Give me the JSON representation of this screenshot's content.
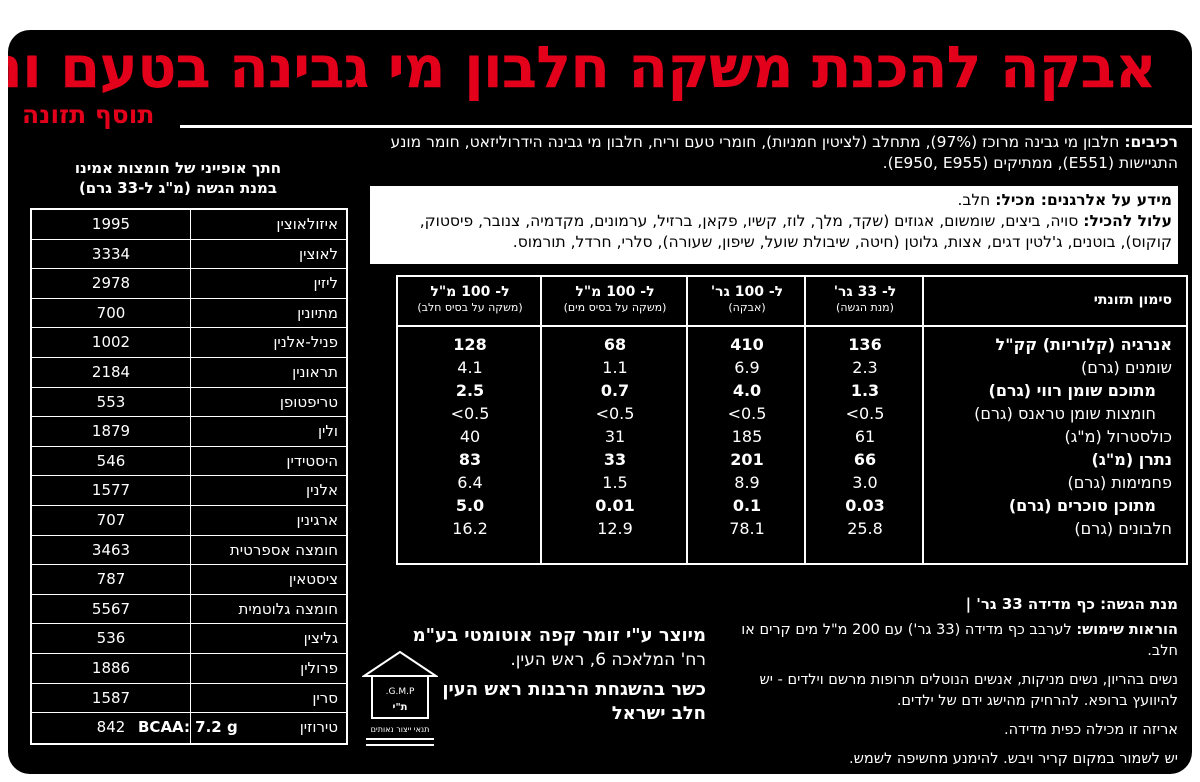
{
  "title": "אבקה להכנת משקה חלבון מי גבינה בטעם וניל",
  "subtitle": "תוסף תזונה",
  "ingredients": {
    "label": "רכיבים:",
    "text": "חלבון מי גבינה מרוכז (97%), מתחלב (לציטין חמניות), חומרי טעם וריח, חלבון מי גבינה הידרוליזאט, חומר מונע התגיישות (E551), ממתיקים (E950, E955)."
  },
  "allergens": {
    "contains_label": "מידע על אלרגנים: מכיל:",
    "contains_text": "חלב.",
    "may_contain_label": "עלול להכיל:",
    "may_contain_text": "סויה, ביצים, שומשום, אגוזים (שקד, מלך, לוז, קשיו, פקאן, ברזיל, ערמונים, מקדמיה, צנובר, פיסטוק, קוקוס), בוטנים, ג'לטין דגים, אצות, גלוטן (חיטה, שיבולת שועל, שיפון, שעורה), סלרי, חרדל, תורמוס."
  },
  "nutrition": {
    "headers": [
      {
        "title": "סימון תזונתי",
        "sub": ""
      },
      {
        "title": "ל- 33 גר'",
        "sub": "(מנת הגשה)"
      },
      {
        "title": "ל- 100 גר'",
        "sub": "(אבקה)"
      },
      {
        "title": "ל- 100 מ\"ל",
        "sub": "(משקה על בסיס מים)"
      },
      {
        "title": "ל- 100 מ\"ל",
        "sub": "(משקה על בסיס חלב)"
      }
    ],
    "rows": [
      {
        "name": "אנרגיה (קלוריות) קק\"ל",
        "values": [
          "136",
          "410",
          "68",
          "128"
        ],
        "bold": true,
        "indent": false
      },
      {
        "name": "שומנים (גרם)",
        "values": [
          "2.3",
          "6.9",
          "1.1",
          "4.1"
        ],
        "bold": false,
        "indent": false
      },
      {
        "name": "מתוכם שומן רווי (גרם)",
        "values": [
          "1.3",
          "4.0",
          "0.7",
          "2.5"
        ],
        "bold": true,
        "indent": true
      },
      {
        "name": "חומצות שומן טראנס (גרם)",
        "values": [
          "<0.5",
          "<0.5",
          "<0.5",
          "<0.5"
        ],
        "bold": false,
        "indent": true
      },
      {
        "name": "כולסטרול (מ\"ג)",
        "values": [
          "61",
          "185",
          "31",
          "40"
        ],
        "bold": false,
        "indent": false
      },
      {
        "name": "נתרן (מ\"ג)",
        "values": [
          "66",
          "201",
          "33",
          "83"
        ],
        "bold": true,
        "indent": false
      },
      {
        "name": "פחמימות (גרם)",
        "values": [
          "3.0",
          "8.9",
          "1.5",
          "6.4"
        ],
        "bold": false,
        "indent": false
      },
      {
        "name": "מתוכן סוכרים (גרם)",
        "values": [
          "0.03",
          "0.1",
          "0.01",
          "5.0"
        ],
        "bold": true,
        "indent": true
      },
      {
        "name": "חלבונים (גרם)",
        "values": [
          "25.8",
          "78.1",
          "12.9",
          "16.2"
        ],
        "bold": false,
        "indent": false
      }
    ]
  },
  "amino": {
    "title": "חתך אופייני של חומצות אמינו",
    "subtitle": "במנת הגשה (מ\"ג ל-33 גרם)",
    "rows": [
      {
        "name": "איזולאוצין",
        "value": "1995"
      },
      {
        "name": "לאוצין",
        "value": "3334"
      },
      {
        "name": "ליזין",
        "value": "2978"
      },
      {
        "name": "מתיונין",
        "value": "700"
      },
      {
        "name": "פניל-אלנין",
        "value": "1002"
      },
      {
        "name": "תראונין",
        "value": "2184"
      },
      {
        "name": "טריפטופן",
        "value": "553"
      },
      {
        "name": "ולין",
        "value": "1879"
      },
      {
        "name": "היסטידין",
        "value": "546"
      },
      {
        "name": "אלנין",
        "value": "1577"
      },
      {
        "name": "ארגינין",
        "value": "707"
      },
      {
        "name": "חומצה אספרטית",
        "value": "3463"
      },
      {
        "name": "ציסטאין",
        "value": "787"
      },
      {
        "name": "חומצה גלוטמית",
        "value": "5567"
      },
      {
        "name": "גליצין",
        "value": "536"
      },
      {
        "name": "פרולין",
        "value": "1886"
      },
      {
        "name": "סרין",
        "value": "1587"
      },
      {
        "name": "טירוזין",
        "value": "842"
      }
    ],
    "bcaa": "BCAA: 7.2 g"
  },
  "serving": "מנת הגשה: כף מדידה 33 גר' |",
  "usage": {
    "label": "הוראות שימוש:",
    "text": "לערבב כף מדידה (33 גר') עם 200 מ\"ל מים קרים או חלב.",
    "warning": "נשים בהריון, נשים מניקות, אנשים הנוטלים תרופות מרשם וילדים - יש להיוועץ ברופא. להרחיק מהישג ידם של ילדים.",
    "package": "אריזה זו מכילה כפית מדידה.",
    "storage": "יש לשמור במקום קריר ויבש. להימנע מחשיפה לשמש."
  },
  "manufacturer": {
    "line1": "מיוצר ע\"י זומר קפה אוטומטי בע\"מ",
    "line2": "רח' המלאכה 6, ראש העין.",
    "kosher1": "כשר בהשגחת הרבנות ראש העין",
    "kosher2": "חלב ישראל"
  },
  "gmp_logo": {
    "icon": "gmp-certification-icon",
    "line1": "G.M.P.",
    "line2": "ת\"י",
    "caption": "תנאי ייצור נאותים"
  }
}
